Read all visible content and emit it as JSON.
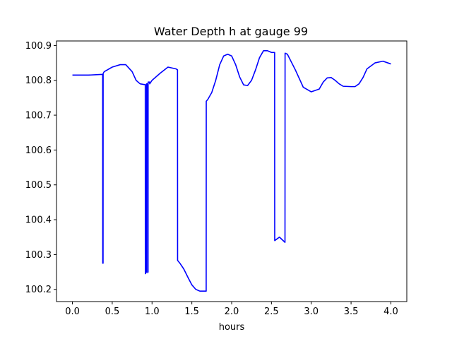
{
  "chart_data": {
    "type": "line",
    "title": "Water Depth h at gauge 99",
    "xlabel": "hours",
    "ylabel": "",
    "xlim": [
      -0.2,
      4.2
    ],
    "ylim": [
      100.165,
      100.913
    ],
    "x_ticks": [
      0.0,
      0.5,
      1.0,
      1.5,
      2.0,
      2.5,
      3.0,
      3.5,
      4.0
    ],
    "x_tick_labels": [
      "0.0",
      "0.5",
      "1.0",
      "1.5",
      "2.0",
      "2.5",
      "3.0",
      "3.5",
      "4.0"
    ],
    "y_ticks": [
      100.2,
      100.3,
      100.4,
      100.5,
      100.6,
      100.7,
      100.8,
      100.9
    ],
    "y_tick_labels": [
      "100.2",
      "100.3",
      "100.4",
      "100.5",
      "100.6",
      "100.7",
      "100.8",
      "100.9"
    ],
    "grid": false,
    "series": [
      {
        "color": "#0000ff",
        "x": [
          0.0,
          0.2,
          0.38,
          0.381,
          0.385,
          0.386,
          0.4,
          0.5,
          0.6,
          0.67,
          0.75,
          0.8,
          0.85,
          0.9,
          0.915,
          0.916,
          0.93,
          0.931,
          0.945,
          0.946,
          0.95,
          0.951,
          0.97,
          0.971,
          1.0,
          1.1,
          1.2,
          1.3,
          1.32,
          1.321,
          1.35,
          1.4,
          1.45,
          1.5,
          1.55,
          1.6,
          1.65,
          1.68,
          1.681,
          1.7,
          1.75,
          1.8,
          1.85,
          1.9,
          1.95,
          2.0,
          2.05,
          2.1,
          2.15,
          2.2,
          2.25,
          2.3,
          2.35,
          2.4,
          2.45,
          2.5,
          2.54,
          2.541,
          2.6,
          2.67,
          2.671,
          2.7,
          2.8,
          2.9,
          3.0,
          3.1,
          3.15,
          3.2,
          3.25,
          3.3,
          3.35,
          3.4,
          3.5,
          3.55,
          3.6,
          3.65,
          3.7,
          3.8,
          3.9,
          4.0
        ],
        "y": [
          100.815,
          100.815,
          100.817,
          100.275,
          100.275,
          100.82,
          100.825,
          100.838,
          100.845,
          100.845,
          100.825,
          100.8,
          100.79,
          100.788,
          100.788,
          100.245,
          100.25,
          100.79,
          100.79,
          100.248,
          100.25,
          100.795,
          100.795,
          100.79,
          100.8,
          100.82,
          100.838,
          100.833,
          100.83,
          100.283,
          100.275,
          100.258,
          100.235,
          100.213,
          100.2,
          100.195,
          100.195,
          100.195,
          100.74,
          100.745,
          100.765,
          100.8,
          100.845,
          100.87,
          100.875,
          100.87,
          100.845,
          100.81,
          100.787,
          100.785,
          100.8,
          100.83,
          100.865,
          100.885,
          100.885,
          100.88,
          100.88,
          100.34,
          100.35,
          100.335,
          100.878,
          100.875,
          100.83,
          100.78,
          100.767,
          100.775,
          100.795,
          100.807,
          100.808,
          100.8,
          100.79,
          100.783,
          100.782,
          100.782,
          100.79,
          100.808,
          100.833,
          100.85,
          100.855,
          100.847
        ]
      }
    ]
  }
}
